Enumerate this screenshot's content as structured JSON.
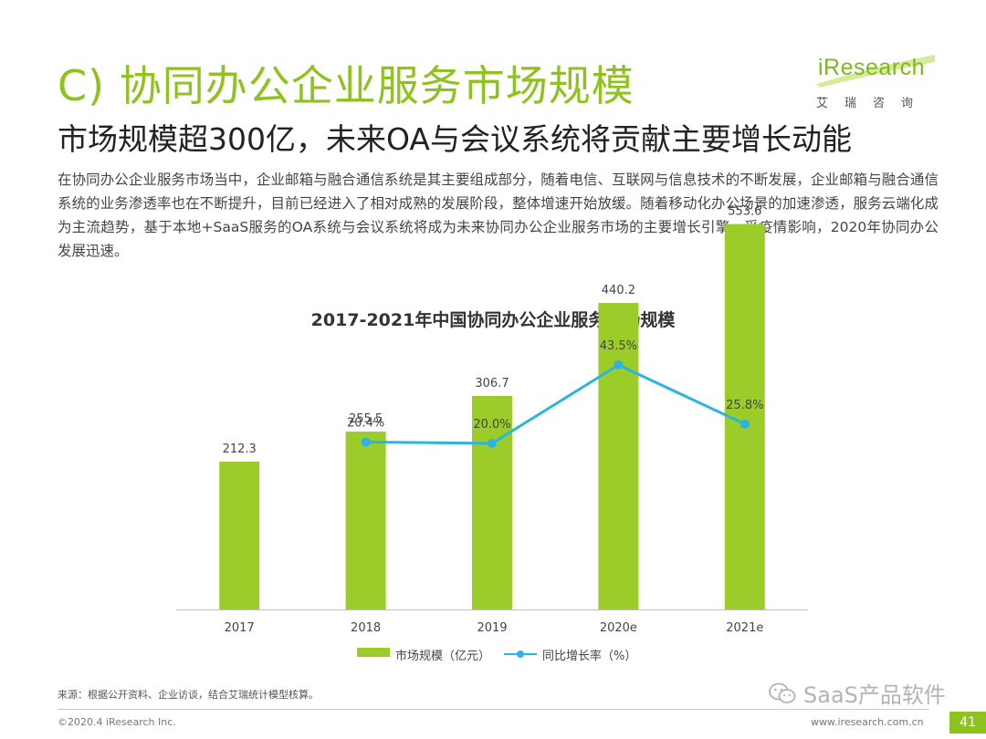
{
  "header": {
    "section_title": "C) 协同办公企业服务市场规模",
    "subtitle": "市场规模超300亿，未来OA与会议系统将贡献主要增长动能",
    "logo_word": "iResearch",
    "logo_sub": "艾瑞咨询"
  },
  "description": "在协同办公企业服务市场当中，企业邮箱与融合通信系统是其主要组成部分，随着电信、互联网与信息技术的不断发展，企业邮箱与融合通信系统的业务渗透率也在不断提升，目前已经进入了相对成熟的发展阶段，整体增速开始放缓。随着移动化办公场景的加速渗透，服务云端化成为主流趋势，基于本地+SaaS服务的OA系统与会议系统将成为未来协同办公企业服务市场的主要增长引擎。受疫情影响，2020年协同办公发展迅速。",
  "chart_data": {
    "type": "bar",
    "title": "2017-2021年中国协同办公企业服务市场规模",
    "categories": [
      "2017",
      "2018",
      "2019",
      "2020e",
      "2021e"
    ],
    "series": [
      {
        "name": "市场规模（亿元）",
        "type": "bar",
        "values": [
          212.3,
          255.5,
          306.7,
          440.2,
          553.6
        ],
        "labels": [
          "212.3",
          "255.5",
          "306.7",
          "440.2",
          "553.6"
        ],
        "color": "#9ccc2a"
      },
      {
        "name": "同比增长率（%）",
        "type": "line",
        "values": [
          null,
          20.4,
          20.0,
          43.5,
          25.8
        ],
        "labels": [
          "",
          "20.4%",
          "20.0%",
          "43.5%",
          "25.8%"
        ],
        "color": "#2cb4e0"
      }
    ],
    "legend_position": "bottom",
    "grid": false
  },
  "footer": {
    "source": "来源：根据公开资料、企业访谈，结合艾瑞统计模型核算。",
    "copyright": "©2020.4 iResearch Inc.",
    "site": "www.iresearch.com.cn",
    "page_number": "41",
    "watermark": "SaaS产品软件"
  }
}
